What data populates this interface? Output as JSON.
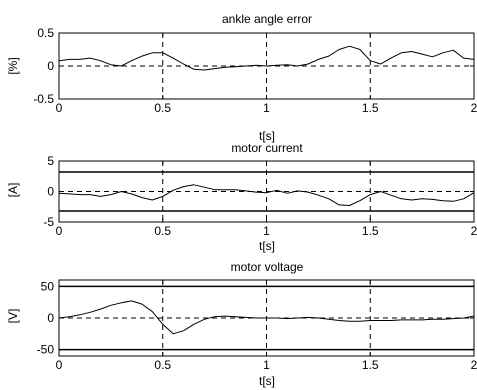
{
  "chart_data": [
    {
      "type": "line",
      "title": "ankle angle error",
      "xlabel": "t[s]",
      "ylabel": "[%]",
      "xlim": [
        0,
        2
      ],
      "ylim": [
        -0.5,
        0.5
      ],
      "xticks": [
        0,
        0.5,
        1,
        1.5,
        2
      ],
      "yticks": [
        -0.5,
        0,
        0.5
      ],
      "xtick_labels": [
        "0",
        "0.5",
        "1",
        "1.5",
        "2"
      ],
      "ytick_labels": [
        "-0.5",
        "0",
        "0.5"
      ],
      "grid": "dashed vertical at x ticks, dashed horizontal at 0",
      "limit_lines": [],
      "series": [
        {
          "x": [
            0,
            0.05,
            0.1,
            0.15,
            0.2,
            0.25,
            0.3,
            0.35,
            0.4,
            0.45,
            0.5,
            0.55,
            0.6,
            0.65,
            0.7,
            0.75,
            0.8,
            0.85,
            0.9,
            0.95,
            1.0,
            1.05,
            1.1,
            1.15,
            1.2,
            1.25,
            1.3,
            1.35,
            1.4,
            1.45,
            1.5,
            1.55,
            1.6,
            1.65,
            1.7,
            1.75,
            1.8,
            1.85,
            1.9,
            1.95,
            2.0
          ],
          "y": [
            0.08,
            0.1,
            0.1,
            0.12,
            0.08,
            0.02,
            0.0,
            0.08,
            0.15,
            0.2,
            0.2,
            0.12,
            0.03,
            -0.05,
            -0.06,
            -0.04,
            -0.02,
            -0.01,
            0.0,
            0.01,
            0.0,
            0.01,
            0.02,
            0.0,
            0.03,
            0.1,
            0.15,
            0.25,
            0.3,
            0.25,
            0.08,
            0.03,
            0.12,
            0.2,
            0.22,
            0.18,
            0.14,
            0.2,
            0.24,
            0.12,
            0.1
          ]
        }
      ]
    },
    {
      "type": "line",
      "title": "motor current",
      "xlabel": "t[s]",
      "ylabel": "[A]",
      "xlim": [
        0,
        2
      ],
      "ylim": [
        -5,
        5
      ],
      "xticks": [
        0,
        0.5,
        1,
        1.5,
        2
      ],
      "yticks": [
        -5,
        0,
        5
      ],
      "xtick_labels": [
        "0",
        "0.5",
        "1",
        "1.5",
        "2"
      ],
      "ytick_labels": [
        "-5",
        "0",
        "5"
      ],
      "grid": "dashed vertical at x ticks, dashed horizontal at 0",
      "limit_lines": [
        3.2,
        -3.2
      ],
      "series": [
        {
          "x": [
            0,
            0.05,
            0.1,
            0.15,
            0.2,
            0.25,
            0.3,
            0.35,
            0.4,
            0.45,
            0.5,
            0.55,
            0.6,
            0.65,
            0.7,
            0.75,
            0.8,
            0.85,
            0.9,
            0.95,
            1.0,
            1.05,
            1.1,
            1.15,
            1.2,
            1.25,
            1.3,
            1.35,
            1.4,
            1.45,
            1.5,
            1.55,
            1.6,
            1.65,
            1.7,
            1.75,
            1.8,
            1.85,
            1.9,
            1.95,
            2.0
          ],
          "y": [
            -0.3,
            -0.4,
            -0.5,
            -0.5,
            -0.8,
            -0.5,
            0.0,
            -0.4,
            -1.0,
            -1.4,
            -0.8,
            0.2,
            0.8,
            1.1,
            0.7,
            0.3,
            0.3,
            0.3,
            0.1,
            -0.1,
            -0.2,
            0.2,
            -0.3,
            0.1,
            -0.1,
            -0.6,
            -1.2,
            -2.2,
            -2.3,
            -1.5,
            -0.5,
            0.0,
            -0.6,
            -1.2,
            -1.4,
            -1.2,
            -1.3,
            -1.5,
            -1.6,
            -1.2,
            -0.2
          ]
        }
      ]
    },
    {
      "type": "line",
      "title": "motor voltage",
      "xlabel": "t[s]",
      "ylabel": "[V]",
      "xlim": [
        0,
        2
      ],
      "ylim": [
        -60,
        60
      ],
      "xticks": [
        0,
        0.5,
        1,
        1.5,
        2
      ],
      "yticks": [
        -50,
        0,
        50
      ],
      "xtick_labels": [
        "0",
        "0.5",
        "1",
        "1.5",
        "2"
      ],
      "ytick_labels": [
        "-50",
        "0",
        "50"
      ],
      "grid": "dashed vertical at x ticks, dashed horizontal at 0",
      "limit_lines": [
        50,
        -50
      ],
      "series": [
        {
          "x": [
            0,
            0.05,
            0.1,
            0.15,
            0.2,
            0.25,
            0.3,
            0.35,
            0.4,
            0.45,
            0.5,
            0.55,
            0.6,
            0.65,
            0.7,
            0.75,
            0.8,
            0.85,
            0.9,
            0.95,
            1.0,
            1.05,
            1.1,
            1.15,
            1.2,
            1.25,
            1.3,
            1.35,
            1.4,
            1.45,
            1.5,
            1.55,
            1.6,
            1.65,
            1.7,
            1.75,
            1.8,
            1.85,
            1.9,
            1.95,
            2.0
          ],
          "y": [
            0,
            2,
            5,
            9,
            14,
            20,
            24,
            27,
            22,
            10,
            -10,
            -25,
            -20,
            -10,
            -2,
            2,
            3,
            2,
            1,
            0,
            0,
            0,
            -1,
            0,
            1,
            0,
            -2,
            -4,
            -5,
            -5,
            -4,
            -4,
            -4,
            -3,
            -3,
            -3,
            -2,
            -2,
            -1,
            0,
            3
          ]
        }
      ]
    }
  ],
  "colors": {
    "line": "#000000",
    "background": "#ffffff"
  }
}
